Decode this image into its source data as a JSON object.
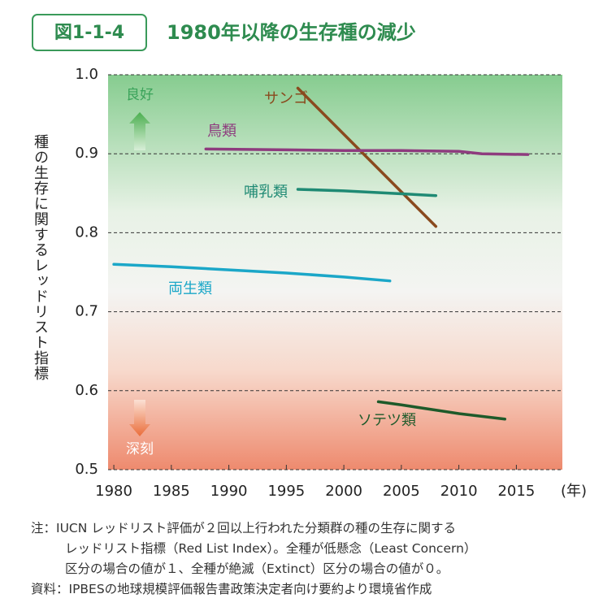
{
  "chart_data": {
    "type": "line",
    "figure_label": "図1-1-4",
    "title": "1980年以降の生存種の減少",
    "y_label": "種の生存に関するレッドリスト指標",
    "x_label": "(年)",
    "xlim": [
      1979.5,
      2019
    ],
    "xticks": [
      1980,
      1985,
      1990,
      1995,
      2000,
      2005,
      2010,
      2015
    ],
    "ylim": [
      0.5,
      1.0
    ],
    "yticks": [
      0.5,
      0.6,
      0.7,
      0.8,
      0.9,
      {
        "value": 1,
        "label": "1.0"
      }
    ],
    "grid": true,
    "annotations": [
      "良好",
      "深刻"
    ],
    "series": [
      {
        "name": "サンゴ",
        "color": "#8a4a1e",
        "x": [
          1996,
          2008
        ],
        "values": [
          0.983,
          0.808
        ]
      },
      {
        "name": "鳥類",
        "color": "#8e3b7e",
        "x": [
          1988,
          1995,
          2000,
          2005,
          2010,
          2012,
          2016
        ],
        "values": [
          0.906,
          0.905,
          0.904,
          0.904,
          0.903,
          0.9,
          0.899
        ]
      },
      {
        "name": "哺乳類",
        "color": "#1f8a74",
        "x": [
          1996,
          2000,
          2004,
          2008
        ],
        "values": [
          0.855,
          0.853,
          0.85,
          0.847
        ]
      },
      {
        "name": "両生類",
        "color": "#1ba7c8",
        "x": [
          1980,
          1985,
          1990,
          1995,
          2000,
          2004
        ],
        "values": [
          0.76,
          0.757,
          0.753,
          0.749,
          0.744,
          0.739
        ]
      },
      {
        "name": "ソテツ類",
        "color": "#1e5a2a",
        "x": [
          2003,
          2005,
          2010,
          2014
        ],
        "values": [
          0.586,
          0.582,
          0.571,
          0.564
        ]
      }
    ]
  },
  "notes": [
    "注：IUCN レッドリスト評価が２回以上行われた分類群の種の生存に関する",
    "レッドリスト指標（Red List Index）。全種が低懸念（Least Concern）",
    "区分の場合の値が１、全種が絶滅（Extinct）区分の場合の値が０。"
  ],
  "source": "資料：IPBESの地球規模評価報告書政策決定者向け要約より環境省作成"
}
